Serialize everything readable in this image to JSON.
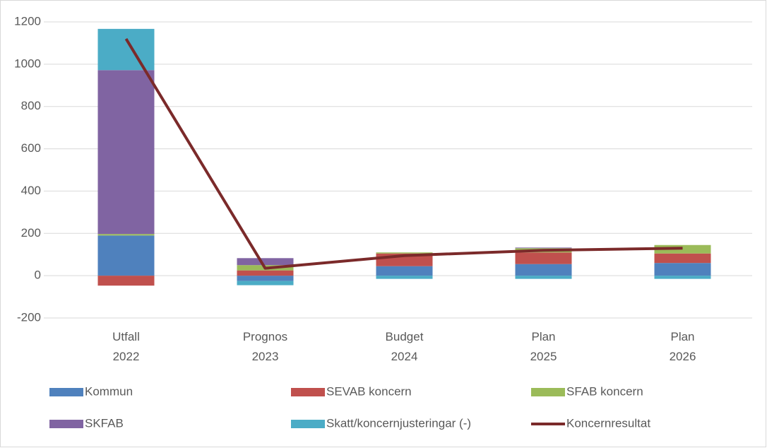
{
  "chart_data": {
    "type": "bar",
    "categories": [
      "Utfall 2022",
      "Prognos 2023",
      "Budget 2024",
      "Plan 2025",
      "Plan 2026"
    ],
    "series": [
      {
        "name": "Kommun",
        "color": "#4f81bd",
        "values": [
          190,
          -25,
          45,
          55,
          60
        ]
      },
      {
        "name": "SEVAB koncern",
        "color": "#c0504d",
        "values": [
          -47,
          25,
          60,
          55,
          45
        ]
      },
      {
        "name": "SFAB koncern",
        "color": "#9bbb59",
        "values": [
          7,
          25,
          5,
          20,
          40
        ]
      },
      {
        "name": "SKFAB",
        "color": "#8064a2",
        "values": [
          775,
          33,
          0,
          3,
          0
        ]
      },
      {
        "name": "Skatt/koncernjusteringar (-)",
        "color": "#4bacc6",
        "values": [
          195,
          -20,
          -15,
          -15,
          -15
        ]
      },
      {
        "name": "Koncernresultat",
        "color": "#7b2a2a",
        "type": "line",
        "values": [
          1120,
          35,
          95,
          120,
          130
        ]
      }
    ],
    "ylim": [
      -200,
      1200
    ],
    "yticks": [
      -200,
      0,
      200,
      400,
      600,
      800,
      1000,
      1200
    ],
    "grid": true
  }
}
